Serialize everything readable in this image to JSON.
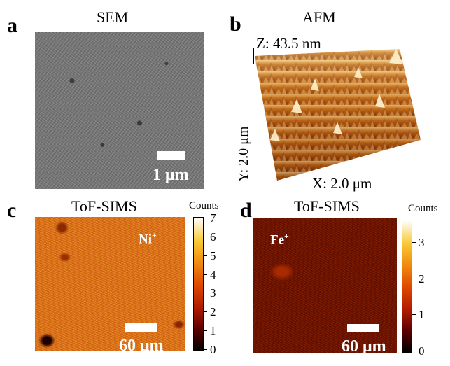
{
  "panels": {
    "a": {
      "label": "a",
      "title": "SEM",
      "scale": "1 μm"
    },
    "b": {
      "label": "b",
      "title": "AFM",
      "z_label": "Z: 43.5 nm",
      "y_label": "Y: 2.0 μm",
      "x_label": "X: 2.0 μm"
    },
    "c": {
      "label": "c",
      "title": "ToF-SIMS",
      "ion": "Ni",
      "ion_charge": "+",
      "scale": "60 μm",
      "colorbar": {
        "title": "Counts",
        "ticks": [
          "7",
          "6",
          "5",
          "4",
          "3",
          "2",
          "1",
          "0"
        ]
      }
    },
    "d": {
      "label": "d",
      "title": "ToF-SIMS",
      "ion": "Fe",
      "ion_charge": "+",
      "scale": "60 μm",
      "colorbar": {
        "title": "Counts",
        "ticks": [
          "3",
          "2",
          "1",
          "0"
        ]
      }
    }
  },
  "colors": {
    "colormap_low": "#000000",
    "colormap_mid": "#e04a00",
    "colormap_high": "#ffffff",
    "sem_gray": "#7a7a7a"
  }
}
